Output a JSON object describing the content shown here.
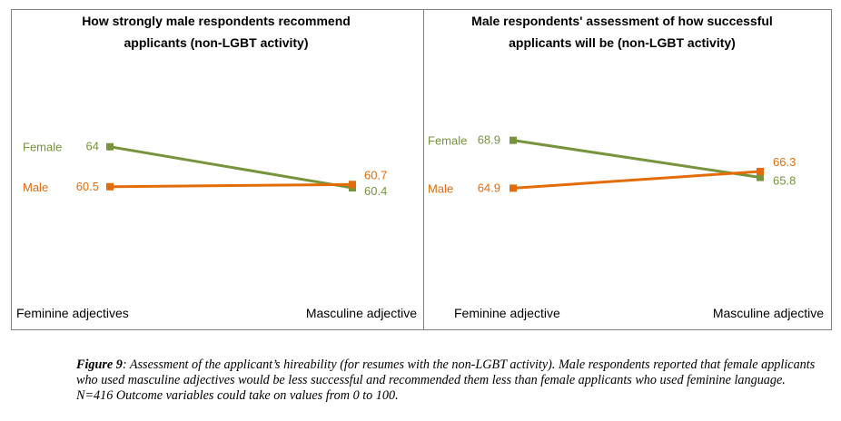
{
  "colors": {
    "female": "#77933c",
    "male": "#e36c09"
  },
  "chart_data": [
    {
      "type": "line",
      "title": [
        "How strongly male respondents recommend",
        "applicants (non-LGBT activity)"
      ],
      "categories": [
        "Feminine adjectives",
        "Masculine adjective"
      ],
      "series": [
        {
          "name": "Female",
          "values": [
            64,
            60.4
          ]
        },
        {
          "name": "Male",
          "values": [
            60.5,
            60.7
          ]
        }
      ],
      "ylim": [
        50,
        72
      ]
    },
    {
      "type": "line",
      "title": [
        "Male respondents' assessment of how successful",
        "applicants will be (non-LGBT activity)"
      ],
      "categories": [
        "Feminine adjective",
        "Masculine adjective"
      ],
      "series": [
        {
          "name": "Female",
          "values": [
            68.9,
            65.8
          ]
        },
        {
          "name": "Male",
          "values": [
            64.9,
            66.3
          ]
        }
      ],
      "ylim": [
        55,
        76
      ]
    }
  ],
  "caption": {
    "label": "Figure 9",
    "text": ": Assessment of the applicant’s hireability (for resumes with the non-LGBT activity). Male respondents reported that female applicants who used masculine adjectives would be less successful and recommended them less than female applicants who used feminine language. N=416 Outcome variables could take on values from 0 to 100."
  }
}
